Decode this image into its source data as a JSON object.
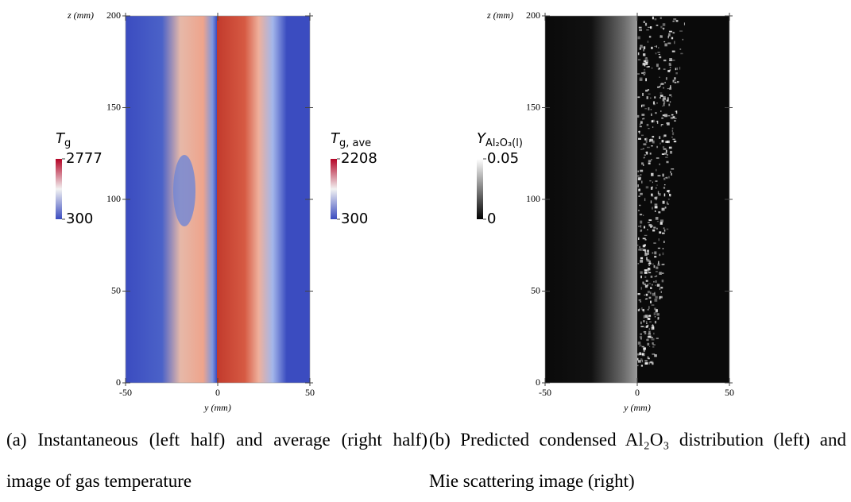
{
  "panels": [
    {
      "y_axis_label": "z (mm)",
      "x_axis_label": "y (mm)",
      "xticks": [
        -50,
        0,
        50
      ],
      "yticks": [
        0,
        50,
        100,
        150,
        200
      ],
      "colorbars": [
        {
          "symbol": "T",
          "subscript": "g",
          "max": 2777,
          "min": 300
        },
        {
          "symbol": "T",
          "subscript": "g, ave",
          "max": 2208,
          "min": 300
        }
      ],
      "caption": "(a) Instantaneous (left half) and average (right half) image of gas temperature"
    },
    {
      "y_axis_label": "z (mm)",
      "x_axis_label": "y (mm)",
      "xticks": [
        -50,
        0,
        50
      ],
      "yticks": [
        0,
        50,
        100,
        150,
        200
      ],
      "colorbars": [
        {
          "symbol": "Y",
          "subscript": "Al₂O₃(l)",
          "max": 0.05,
          "min": 0
        }
      ],
      "caption": "(b) Predicted condensed Al₂O₃ distribution (left) and Mie scattering image (right)"
    }
  ]
}
